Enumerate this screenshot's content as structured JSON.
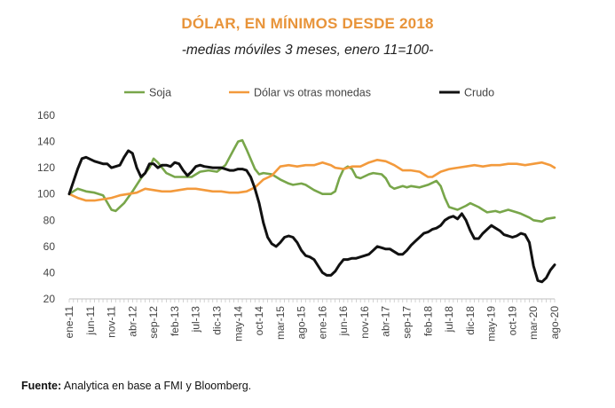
{
  "title": "DÓLAR, EN MÍNIMOS DESDE 2018",
  "subtitle": "-medias móviles 3 meses, enero 11=100-",
  "source_label": "Fuente:",
  "source_text": " Analytica en base a FMI y Bloomberg.",
  "chart_data": {
    "type": "line",
    "ylim": [
      20,
      160
    ],
    "yticks": [
      20,
      40,
      60,
      80,
      100,
      120,
      140,
      160
    ],
    "xlim": [
      0,
      115
    ],
    "xticks": [
      {
        "i": 0,
        "label": "ene-11"
      },
      {
        "i": 5,
        "label": "jun-11"
      },
      {
        "i": 10,
        "label": "nov-11"
      },
      {
        "i": 15,
        "label": "abr-12"
      },
      {
        "i": 20,
        "label": "sep-12"
      },
      {
        "i": 25,
        "label": "feb-13"
      },
      {
        "i": 30,
        "label": "jul-13"
      },
      {
        "i": 35,
        "label": "dic-13"
      },
      {
        "i": 40,
        "label": "may-14"
      },
      {
        "i": 45,
        "label": "oct-14"
      },
      {
        "i": 50,
        "label": "mar-15"
      },
      {
        "i": 55,
        "label": "ago-15"
      },
      {
        "i": 60,
        "label": "ene-16"
      },
      {
        "i": 65,
        "label": "jun-16"
      },
      {
        "i": 70,
        "label": "nov-16"
      },
      {
        "i": 75,
        "label": "abr-17"
      },
      {
        "i": 80,
        "label": "sep-17"
      },
      {
        "i": 85,
        "label": "feb-18"
      },
      {
        "i": 90,
        "label": "jul-18"
      },
      {
        "i": 95,
        "label": "dic-18"
      },
      {
        "i": 100,
        "label": "may-19"
      },
      {
        "i": 105,
        "label": "oct-19"
      },
      {
        "i": 110,
        "label": "mar-20"
      },
      {
        "i": 115,
        "label": "ago-20"
      }
    ],
    "legend_position": "top",
    "series": [
      {
        "name": "Soja",
        "color": "#78A64A",
        "points": [
          [
            0,
            100
          ],
          [
            2,
            104
          ],
          [
            4,
            102
          ],
          [
            6,
            101
          ],
          [
            8,
            99
          ],
          [
            10,
            88
          ],
          [
            11,
            87
          ],
          [
            13,
            93
          ],
          [
            15,
            102
          ],
          [
            17,
            112
          ],
          [
            19,
            120
          ],
          [
            20,
            127
          ],
          [
            21,
            124
          ],
          [
            23,
            116
          ],
          [
            25,
            113
          ],
          [
            27,
            113
          ],
          [
            29,
            113
          ],
          [
            31,
            117
          ],
          [
            33,
            118
          ],
          [
            35,
            117
          ],
          [
            37,
            122
          ],
          [
            39,
            134
          ],
          [
            40,
            140
          ],
          [
            41,
            141
          ],
          [
            42,
            134
          ],
          [
            44,
            119
          ],
          [
            45,
            115
          ],
          [
            46,
            116
          ],
          [
            48,
            115
          ],
          [
            50,
            111
          ],
          [
            52,
            108
          ],
          [
            53,
            107
          ],
          [
            55,
            108
          ],
          [
            56,
            107
          ],
          [
            58,
            103
          ],
          [
            60,
            100
          ],
          [
            62,
            100
          ],
          [
            63,
            102
          ],
          [
            64,
            112
          ],
          [
            65,
            119
          ],
          [
            66,
            121
          ],
          [
            67,
            119
          ],
          [
            68,
            113
          ],
          [
            69,
            112
          ],
          [
            71,
            115
          ],
          [
            72,
            116
          ],
          [
            74,
            115
          ],
          [
            75,
            112
          ],
          [
            76,
            106
          ],
          [
            77,
            104
          ],
          [
            79,
            106
          ],
          [
            80,
            105
          ],
          [
            81,
            106
          ],
          [
            83,
            105
          ],
          [
            85,
            107
          ],
          [
            87,
            110
          ],
          [
            88,
            106
          ],
          [
            89,
            97
          ],
          [
            90,
            90
          ],
          [
            92,
            88
          ],
          [
            94,
            91
          ],
          [
            95,
            93
          ],
          [
            97,
            90
          ],
          [
            98,
            88
          ],
          [
            99,
            86
          ],
          [
            101,
            87
          ],
          [
            102,
            86
          ],
          [
            104,
            88
          ],
          [
            106,
            86
          ],
          [
            107,
            85
          ],
          [
            109,
            82
          ],
          [
            110,
            80
          ],
          [
            112,
            79
          ],
          [
            113,
            81
          ],
          [
            115,
            82
          ]
        ]
      },
      {
        "name": "Dólar vs otras monedas",
        "color": "#F39A3C",
        "points": [
          [
            0,
            100
          ],
          [
            2,
            97
          ],
          [
            4,
            95
          ],
          [
            6,
            95
          ],
          [
            8,
            96
          ],
          [
            10,
            97
          ],
          [
            12,
            99
          ],
          [
            14,
            100
          ],
          [
            16,
            101
          ],
          [
            18,
            104
          ],
          [
            20,
            103
          ],
          [
            22,
            102
          ],
          [
            24,
            102
          ],
          [
            26,
            103
          ],
          [
            28,
            104
          ],
          [
            30,
            104
          ],
          [
            32,
            103
          ],
          [
            34,
            102
          ],
          [
            36,
            102
          ],
          [
            38,
            101
          ],
          [
            40,
            101
          ],
          [
            42,
            102
          ],
          [
            44,
            105
          ],
          [
            46,
            111
          ],
          [
            48,
            114
          ],
          [
            50,
            121
          ],
          [
            52,
            122
          ],
          [
            54,
            121
          ],
          [
            56,
            122
          ],
          [
            58,
            122
          ],
          [
            60,
            124
          ],
          [
            62,
            122
          ],
          [
            63,
            120
          ],
          [
            65,
            119
          ],
          [
            67,
            121
          ],
          [
            69,
            121
          ],
          [
            71,
            124
          ],
          [
            73,
            126
          ],
          [
            75,
            125
          ],
          [
            77,
            122
          ],
          [
            79,
            118
          ],
          [
            81,
            118
          ],
          [
            83,
            117
          ],
          [
            85,
            113
          ],
          [
            86,
            113
          ],
          [
            88,
            117
          ],
          [
            90,
            119
          ],
          [
            92,
            120
          ],
          [
            94,
            121
          ],
          [
            96,
            122
          ],
          [
            98,
            121
          ],
          [
            100,
            122
          ],
          [
            102,
            122
          ],
          [
            104,
            123
          ],
          [
            106,
            123
          ],
          [
            108,
            122
          ],
          [
            110,
            123
          ],
          [
            112,
            124
          ],
          [
            114,
            122
          ],
          [
            115,
            120
          ]
        ]
      },
      {
        "name": "Crudo",
        "color": "#111111",
        "points": [
          [
            0,
            100
          ],
          [
            2,
            119
          ],
          [
            3,
            127
          ],
          [
            4,
            128
          ],
          [
            6,
            125
          ],
          [
            8,
            123
          ],
          [
            9,
            123
          ],
          [
            10,
            120
          ],
          [
            11,
            121
          ],
          [
            12,
            122
          ],
          [
            13,
            128
          ],
          [
            14,
            133
          ],
          [
            15,
            131
          ],
          [
            16,
            120
          ],
          [
            17,
            113
          ],
          [
            18,
            116
          ],
          [
            19,
            123
          ],
          [
            20,
            123
          ],
          [
            21,
            120
          ],
          [
            22,
            122
          ],
          [
            23,
            122
          ],
          [
            24,
            121
          ],
          [
            25,
            124
          ],
          [
            26,
            123
          ],
          [
            27,
            118
          ],
          [
            28,
            114
          ],
          [
            29,
            117
          ],
          [
            30,
            121
          ],
          [
            31,
            122
          ],
          [
            32,
            121
          ],
          [
            34,
            120
          ],
          [
            36,
            120
          ],
          [
            37,
            119
          ],
          [
            38,
            118
          ],
          [
            39,
            118
          ],
          [
            40,
            119
          ],
          [
            41,
            119
          ],
          [
            42,
            118
          ],
          [
            43,
            113
          ],
          [
            44,
            104
          ],
          [
            45,
            93
          ],
          [
            46,
            78
          ],
          [
            47,
            67
          ],
          [
            48,
            62
          ],
          [
            49,
            60
          ],
          [
            50,
            63
          ],
          [
            51,
            67
          ],
          [
            52,
            68
          ],
          [
            53,
            67
          ],
          [
            54,
            63
          ],
          [
            55,
            57
          ],
          [
            56,
            53
          ],
          [
            57,
            52
          ],
          [
            58,
            50
          ],
          [
            59,
            45
          ],
          [
            60,
            40
          ],
          [
            61,
            38
          ],
          [
            62,
            38
          ],
          [
            63,
            41
          ],
          [
            64,
            46
          ],
          [
            65,
            50
          ],
          [
            66,
            50
          ],
          [
            67,
            51
          ],
          [
            68,
            51
          ],
          [
            69,
            52
          ],
          [
            70,
            53
          ],
          [
            71,
            54
          ],
          [
            72,
            57
          ],
          [
            73,
            60
          ],
          [
            74,
            59
          ],
          [
            75,
            58
          ],
          [
            76,
            58
          ],
          [
            77,
            56
          ],
          [
            78,
            54
          ],
          [
            79,
            54
          ],
          [
            80,
            57
          ],
          [
            81,
            61
          ],
          [
            82,
            64
          ],
          [
            83,
            67
          ],
          [
            84,
            70
          ],
          [
            85,
            71
          ],
          [
            86,
            73
          ],
          [
            87,
            74
          ],
          [
            88,
            76
          ],
          [
            89,
            80
          ],
          [
            90,
            82
          ],
          [
            91,
            83
          ],
          [
            92,
            81
          ],
          [
            93,
            85
          ],
          [
            94,
            80
          ],
          [
            95,
            72
          ],
          [
            96,
            66
          ],
          [
            97,
            66
          ],
          [
            98,
            70
          ],
          [
            99,
            73
          ],
          [
            100,
            76
          ],
          [
            101,
            74
          ],
          [
            102,
            72
          ],
          [
            103,
            69
          ],
          [
            104,
            68
          ],
          [
            105,
            67
          ],
          [
            106,
            68
          ],
          [
            107,
            70
          ],
          [
            108,
            69
          ],
          [
            109,
            63
          ],
          [
            110,
            45
          ],
          [
            111,
            34
          ],
          [
            112,
            33
          ],
          [
            113,
            36
          ],
          [
            114,
            42
          ],
          [
            115,
            46
          ]
        ]
      }
    ]
  }
}
